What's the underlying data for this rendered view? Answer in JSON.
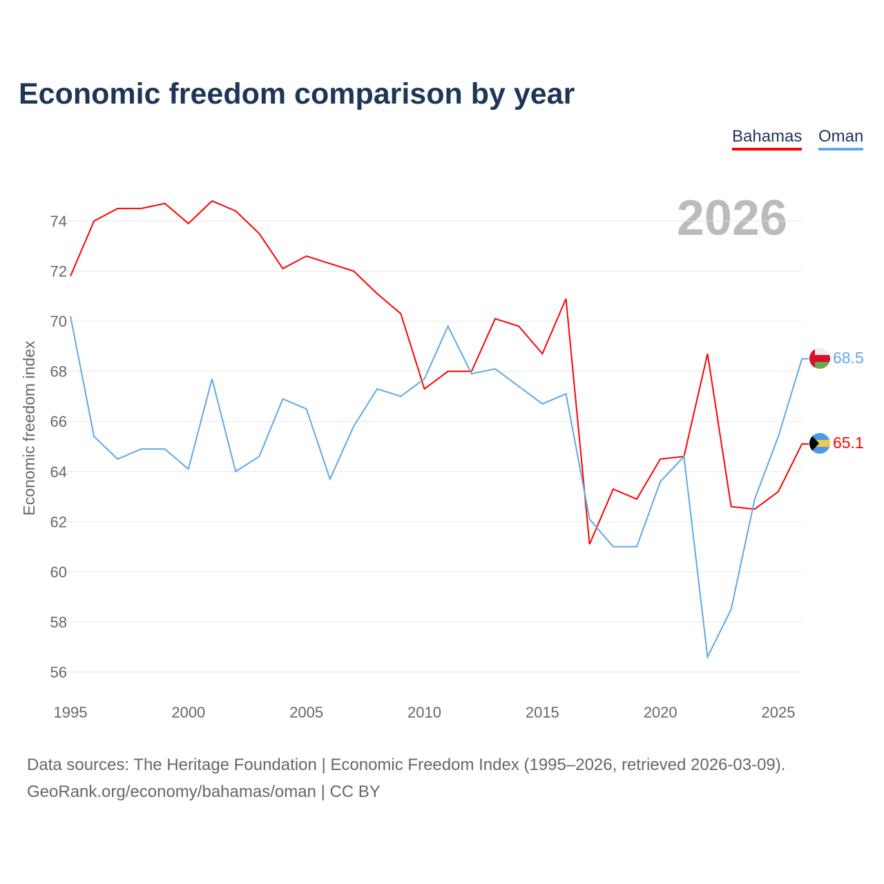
{
  "title": "Economic freedom comparison by year",
  "legend": [
    {
      "name": "Bahamas",
      "color": "#ff0000"
    },
    {
      "name": "Oman",
      "color": "#5ea8ea"
    }
  ],
  "source_line1": "Data sources: The Heritage Foundation | Economic Freedom Index (1995–2026, retrieved 2026-03-09).",
  "source_line2": "GeoRank.org/economy/bahamas/oman | CC BY",
  "chart_data": {
    "type": "line",
    "title": "Economic freedom comparison by year",
    "year_label": "2026",
    "xlabel": "",
    "ylabel": "Economic freedom index",
    "xlim": [
      1995,
      2026
    ],
    "ylim": [
      55,
      76
    ],
    "xticks": [
      1995,
      2000,
      2005,
      2010,
      2015,
      2020,
      2025
    ],
    "yticks": [
      56,
      58,
      60,
      62,
      64,
      66,
      68,
      70,
      72,
      74
    ],
    "grid": true,
    "legend_position": "top-right",
    "x": [
      1995,
      1996,
      1997,
      1998,
      1999,
      2000,
      2001,
      2002,
      2003,
      2004,
      2005,
      2006,
      2007,
      2008,
      2009,
      2010,
      2011,
      2012,
      2013,
      2014,
      2015,
      2016,
      2017,
      2018,
      2019,
      2020,
      2021,
      2022,
      2023,
      2024,
      2025,
      2026
    ],
    "series": [
      {
        "name": "Bahamas",
        "color": "#ff0000",
        "end_label": "65.1",
        "values": [
          71.8,
          74.0,
          74.5,
          74.5,
          74.7,
          73.9,
          74.8,
          74.4,
          73.5,
          72.1,
          72.6,
          72.3,
          72.0,
          71.1,
          70.3,
          67.3,
          68.0,
          68.0,
          70.1,
          69.8,
          68.7,
          70.9,
          61.1,
          63.3,
          62.9,
          64.5,
          64.6,
          68.7,
          62.6,
          62.5,
          63.2,
          65.1
        ]
      },
      {
        "name": "Oman",
        "color": "#5ea8ea",
        "end_label": "68.5",
        "values": [
          70.2,
          65.4,
          64.5,
          64.9,
          64.9,
          64.1,
          67.7,
          64.0,
          64.6,
          66.9,
          66.5,
          63.7,
          65.8,
          67.3,
          67.0,
          67.7,
          69.8,
          67.9,
          68.1,
          67.4,
          66.7,
          67.1,
          62.1,
          61.0,
          61.0,
          63.6,
          64.6,
          56.6,
          58.5,
          62.9,
          65.4,
          68.5
        ]
      }
    ]
  }
}
